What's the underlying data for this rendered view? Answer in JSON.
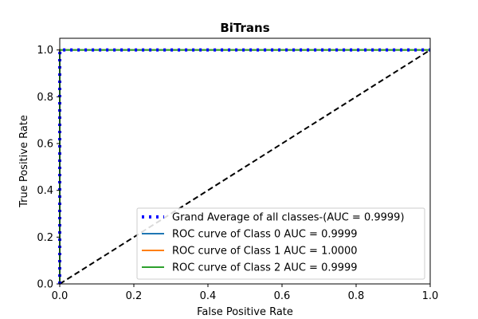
{
  "chart_data": {
    "type": "line",
    "title": "BiTrans",
    "xlabel": "False Positive Rate",
    "ylabel": "True Positive Rate",
    "xlim": [
      0.0,
      1.0
    ],
    "ylim": [
      0.0,
      1.05
    ],
    "xticks": [
      "0.0",
      "0.2",
      "0.4",
      "0.6",
      "0.8",
      "1.0"
    ],
    "yticks": [
      "0.0",
      "0.2",
      "0.4",
      "0.6",
      "0.8",
      "1.0"
    ],
    "grid": false,
    "legend_position": "lower-right",
    "series": [
      {
        "name": "Grand Average of all classes-(AUC = 0.9999)",
        "color": "#0000ff",
        "style": "dotted",
        "x": [
          0.0,
          0.0,
          0.001,
          1.0
        ],
        "y": [
          0.0,
          0.98,
          1.0,
          1.0
        ]
      },
      {
        "name": "ROC curve of Class 0 AUC = 0.9999",
        "color": "#1f77b4",
        "style": "solid",
        "x": [
          0.0,
          0.0,
          0.001,
          1.0
        ],
        "y": [
          0.0,
          0.99,
          1.0,
          1.0
        ]
      },
      {
        "name": "ROC curve of Class 1 AUC = 1.0000",
        "color": "#ff7f0e",
        "style": "solid",
        "x": [
          0.0,
          0.0,
          1.0
        ],
        "y": [
          0.0,
          1.0,
          1.0
        ]
      },
      {
        "name": "ROC curve of Class 2 AUC = 0.9999",
        "color": "#2ca02c",
        "style": "solid",
        "x": [
          0.0,
          0.0,
          0.001,
          1.0
        ],
        "y": [
          0.0,
          0.99,
          1.0,
          1.0
        ]
      }
    ],
    "reference_line": {
      "x": [
        0.0,
        1.0
      ],
      "y": [
        0.0,
        1.0
      ],
      "color": "#000000",
      "style": "dashed"
    }
  }
}
